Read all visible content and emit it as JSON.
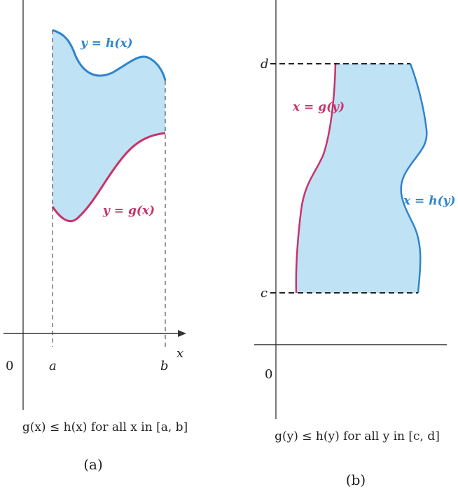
{
  "panel_a": {
    "curve_top_label": "y = h(x)",
    "curve_bottom_label": "y = g(x)",
    "x_axis_label": "x",
    "origin_label": "0",
    "left_bound_label": "a",
    "right_bound_label": "b",
    "caption": "g(x) ≤ h(x) for all x in [a, b]",
    "panel_label": "(a)"
  },
  "panel_b": {
    "curve_left_label": "x = g(y)",
    "curve_right_label": "x = h(y)",
    "top_bound_label": "d",
    "bottom_bound_label": "c",
    "origin_label": "0",
    "caption": "g(y) ≤ h(y) for all y in [c, d]",
    "panel_label": "(b)"
  },
  "colors": {
    "region_fill": "#bfe2f5",
    "upper_curve": "#2f84cc",
    "lower_curve": "#c8336b",
    "axis": "#333333"
  }
}
